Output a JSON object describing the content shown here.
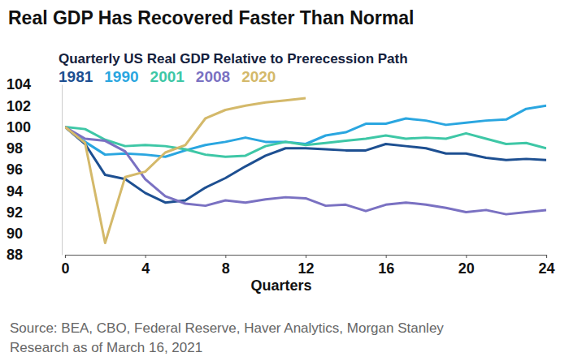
{
  "chart_data": {
    "type": "line",
    "title": "Real GDP Has Recovered Faster Than Normal",
    "subtitle": "Quarterly US Real GDP Relative to Prerecession Path",
    "x_label": "Quarters",
    "source": [
      "Source: BEA, CBO, Federal Reserve, Haver Analytics, Morgan Stanley",
      "Research as of March 16, 2021"
    ],
    "x": [
      0,
      1,
      2,
      3,
      4,
      5,
      6,
      7,
      8,
      9,
      10,
      11,
      12,
      13,
      14,
      15,
      16,
      17,
      18,
      19,
      20,
      21,
      22,
      23,
      24
    ],
    "series": [
      {
        "name": "1981",
        "color": "#1d4f91",
        "values": [
          100,
          98.4,
          95.5,
          95.1,
          93.8,
          92.9,
          93.1,
          94.3,
          95.2,
          96.3,
          97.3,
          98.0,
          98.0,
          97.9,
          97.8,
          97.8,
          98.4,
          98.2,
          98.0,
          97.5,
          97.5,
          97.1,
          96.9,
          97.0,
          96.9
        ]
      },
      {
        "name": "1990",
        "color": "#2aa6e0",
        "values": [
          100,
          98.6,
          97.4,
          97.5,
          97.4,
          97.2,
          97.8,
          98.3,
          98.6,
          99.0,
          98.6,
          98.6,
          98.4,
          99.2,
          99.5,
          100.3,
          100.3,
          100.8,
          100.6,
          100.2,
          100.4,
          100.6,
          100.7,
          101.7,
          102.0
        ]
      },
      {
        "name": "2001",
        "color": "#3ec7a6",
        "values": [
          100,
          99.8,
          98.8,
          98.2,
          98.3,
          98.2,
          97.9,
          97.4,
          97.2,
          97.3,
          98.2,
          98.6,
          98.3,
          98.5,
          98.7,
          98.9,
          99.2,
          98.9,
          99.0,
          98.9,
          99.4,
          98.9,
          98.4,
          98.5,
          98.0
        ]
      },
      {
        "name": "2008",
        "color": "#7a71c2",
        "values": [
          100,
          98.9,
          98.7,
          97.7,
          95.1,
          93.5,
          92.8,
          92.6,
          93.1,
          92.9,
          93.2,
          93.4,
          93.3,
          92.6,
          92.7,
          92.1,
          92.7,
          92.9,
          92.7,
          92.4,
          92.0,
          92.2,
          91.8,
          92.0,
          92.2
        ]
      },
      {
        "name": "2020",
        "color": "#d4b96a",
        "values": [
          100,
          98.5,
          89.1,
          95.3,
          95.8,
          97.6,
          98.3,
          100.8,
          101.6,
          102.0,
          102.3,
          102.5,
          102.7,
          null,
          null,
          null,
          null,
          null,
          null,
          null,
          null,
          null,
          null,
          null,
          null
        ]
      }
    ],
    "xlim": [
      0,
      24
    ],
    "xticks": [
      0,
      4,
      8,
      12,
      16,
      20,
      24
    ],
    "ylim": [
      88,
      104
    ],
    "yticks": [
      88,
      90,
      92,
      94,
      96,
      98,
      100,
      102,
      104
    ],
    "grid": false,
    "legend": "top-left"
  }
}
